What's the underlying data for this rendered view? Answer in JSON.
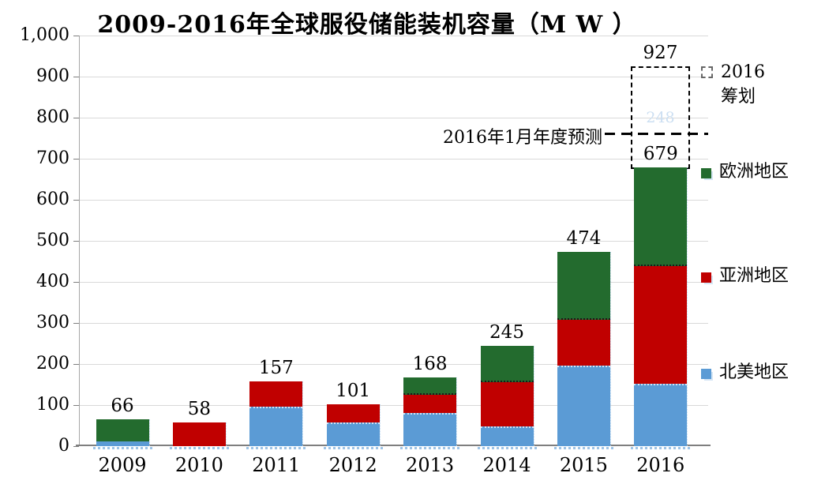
{
  "title": "2009-2016年全球服役储能装机容量（M W ）",
  "chart_data": {
    "type": "bar",
    "stacked": true,
    "title": "2009-2016年全球服役储能装机容量（M W ）",
    "categories": [
      "2009",
      "2010",
      "2011",
      "2012",
      "2013",
      "2014",
      "2015",
      "2016"
    ],
    "series": [
      {
        "name": "北美地区",
        "color": "#5b9bd5",
        "values": [
          11,
          0,
          96,
          58,
          81,
          48,
          196,
          151
        ]
      },
      {
        "name": "亚洲地区",
        "color": "#c00000",
        "values": [
          0,
          58,
          61,
          43,
          44,
          108,
          111,
          287
        ]
      },
      {
        "name": "欧洲地区",
        "color": "#236b2e",
        "values": [
          55,
          0,
          0,
          0,
          43,
          89,
          167,
          241
        ]
      }
    ],
    "totals": [
      "66",
      "58",
      "157",
      "101",
      "168",
      "245",
      "474",
      "679"
    ],
    "planned_2016": {
      "legend_label": "2016 筹划",
      "value": 248,
      "faint_label": "248",
      "total_with_planned": "927",
      "applies_to_category": "2016"
    },
    "annotation": {
      "text": "2016年1月年度预测",
      "value": 760
    },
    "ylim": [
      0,
      1000
    ],
    "ytick_step": 100,
    "yticks": [
      "1,000",
      "900",
      "800",
      "700",
      "600",
      "500",
      "400",
      "300",
      "200",
      "100",
      "0"
    ],
    "xlabel": "",
    "ylabel": "",
    "grid": true,
    "legend_position": "right",
    "colors": {
      "north_america_blue": "#5b9bd5",
      "asia_red": "#c00000",
      "europe_green": "#236b2e",
      "gridline_gray": "#d9d9d9",
      "dashed_black": "#000000"
    }
  },
  "legend": {
    "planned": {
      "line1": "2016",
      "line2": "筹划"
    },
    "europe": "欧洲地区",
    "asia": "亚洲地区",
    "north_america": "北美地区"
  }
}
